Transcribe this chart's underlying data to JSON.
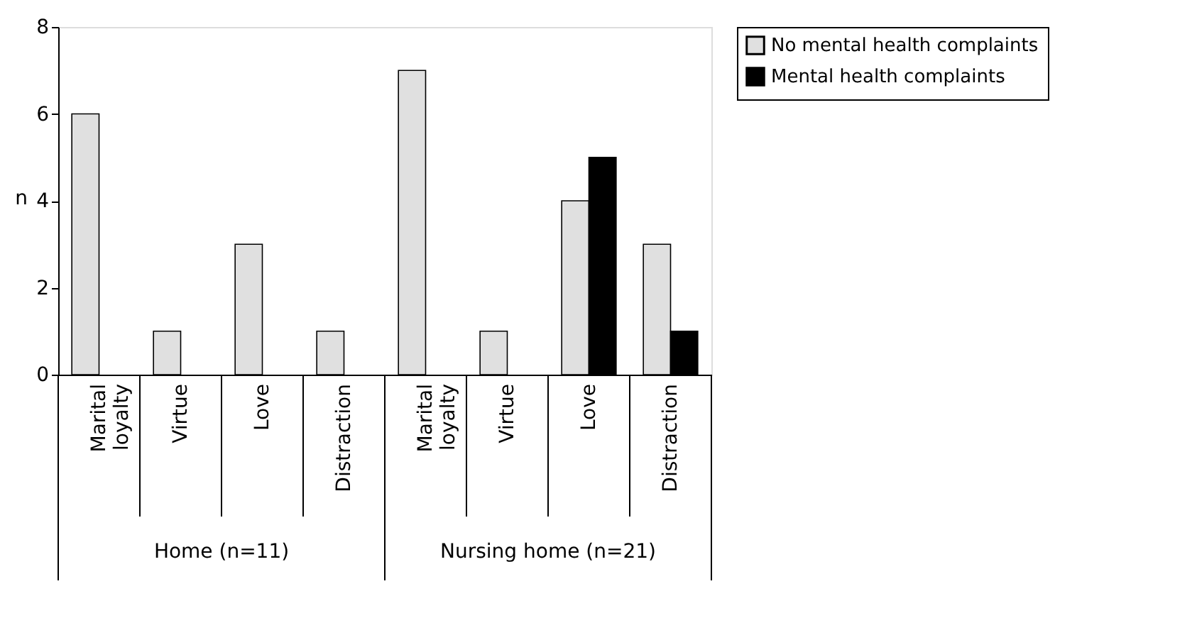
{
  "chart_data": {
    "type": "bar",
    "ylabel": "n",
    "categories": [
      "Marital loyalty",
      "Virtue",
      "Love",
      "Distraction",
      "Marital loyalty",
      "Virtue",
      "Love",
      "Distraction"
    ],
    "series": [
      {
        "name": "No mental health complaints",
        "color": "#e0e0e0",
        "values": [
          6,
          1,
          3,
          1,
          7,
          1,
          4,
          3
        ]
      },
      {
        "name": "Mental health complaints",
        "color": "#000000",
        "values": [
          null,
          null,
          null,
          null,
          null,
          null,
          5,
          1
        ]
      }
    ],
    "ylim": [
      0,
      8
    ],
    "yticks": [
      0,
      2,
      4,
      6,
      8
    ],
    "grid": false,
    "legend": "top right",
    "annotations": [
      "Home (n=11)",
      "Nursing home (n=21)"
    ]
  }
}
